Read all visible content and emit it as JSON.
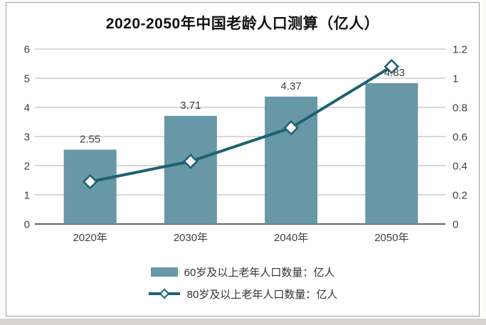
{
  "title": "2020-2050年中国老龄人口测算（亿人）",
  "chart_data": {
    "type": "bar",
    "combo": "bar+line-dual-axis",
    "categories": [
      "2020年",
      "2030年",
      "2040年",
      "2050年"
    ],
    "series": [
      {
        "name": "60岁及以上老年人口数量：亿人",
        "type": "bar",
        "axis": "left",
        "values": [
          2.55,
          3.71,
          4.37,
          4.83
        ],
        "data_labels": [
          "2.55",
          "3.71",
          "4.37",
          "4.83"
        ],
        "color": "#6897a7"
      },
      {
        "name": "80岁及以上老年人口数量：亿人",
        "type": "line",
        "axis": "right",
        "values": [
          0.29,
          0.43,
          0.66,
          1.08
        ],
        "marker": "diamond",
        "marker_fill": "#ffffff",
        "color": "#1d6272"
      }
    ],
    "left_axis": {
      "min": 0,
      "max": 6,
      "ticks": [
        "0",
        "1",
        "2",
        "3",
        "4",
        "5",
        "6"
      ]
    },
    "right_axis": {
      "min": 0,
      "max": 1.2,
      "ticks": [
        "0",
        "0.2",
        "0.4",
        "0.6",
        "0.8",
        "1",
        "1.2"
      ]
    },
    "grid": true,
    "legend_position": "bottom",
    "colors": {
      "grid": "#b3b2b1",
      "axis_line": "#4f4f4f",
      "tick_text": "#3f3f3f",
      "label_text": "#3d3d3d",
      "title_text": "#111111"
    }
  }
}
